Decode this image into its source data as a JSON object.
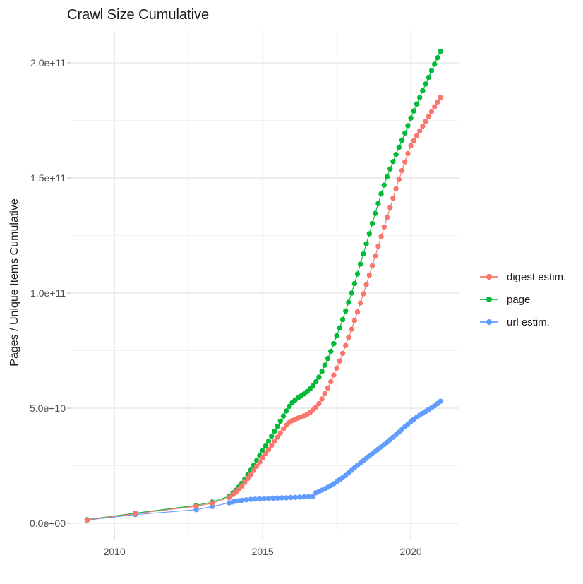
{
  "chart_data": {
    "type": "scatter",
    "title": "Crawl Size Cumulative",
    "xlabel": "",
    "ylabel": "Pages / Unique Items Cumulative",
    "grid": true,
    "legend_position": "right",
    "xlim": [
      2008.52,
      2021.64
    ],
    "ylim_billions": [
      -5.2,
      214.4
    ],
    "x_ticks": [
      {
        "value": 2010,
        "label": "2010"
      },
      {
        "value": 2015,
        "label": "2015"
      },
      {
        "value": 2020,
        "label": "2020"
      }
    ],
    "y_ticks": [
      {
        "value_billions": 0,
        "label": "0.0e+00"
      },
      {
        "value_billions": 50,
        "label": "5.0e+10"
      },
      {
        "value_billions": 100,
        "label": "1.0e+11"
      },
      {
        "value_billions": 150,
        "label": "1.5e+11"
      },
      {
        "value_billions": 200,
        "label": "2.0e+11"
      }
    ],
    "x_minor_gridlines": [
      2012.5,
      2017.5
    ],
    "y_minor_gridlines_billions": [
      25,
      75,
      125,
      175
    ],
    "value_scale_note": "point values are billions of pages/items (1e9)",
    "render_order": [
      1,
      2,
      0
    ],
    "series": [
      {
        "name": "digest estim.",
        "color": "#F8766D",
        "points": [
          [
            2009.08,
            1.5
          ],
          [
            2010.7,
            4.2
          ],
          [
            2012.76,
            7.4
          ],
          [
            2013.3,
            8.8
          ],
          [
            2013.87,
            11.2
          ],
          [
            2014.0,
            12.5
          ],
          [
            2014.1,
            13.5
          ],
          [
            2014.2,
            14.8
          ],
          [
            2014.3,
            16.2
          ],
          [
            2014.4,
            17.8
          ],
          [
            2014.5,
            19.5
          ],
          [
            2014.6,
            21.2
          ],
          [
            2014.7,
            23.0
          ],
          [
            2014.8,
            24.8
          ],
          [
            2014.9,
            26.6
          ],
          [
            2015.0,
            28.4
          ],
          [
            2015.1,
            30.2
          ],
          [
            2015.2,
            32.0
          ],
          [
            2015.3,
            33.8
          ],
          [
            2015.4,
            35.6
          ],
          [
            2015.5,
            37.4
          ],
          [
            2015.6,
            39.2
          ],
          [
            2015.7,
            41.0
          ],
          [
            2015.8,
            42.6
          ],
          [
            2015.9,
            43.8
          ],
          [
            2016.0,
            44.6
          ],
          [
            2016.1,
            45.2
          ],
          [
            2016.2,
            45.7
          ],
          [
            2016.3,
            46.2
          ],
          [
            2016.4,
            46.7
          ],
          [
            2016.5,
            47.3
          ],
          [
            2016.6,
            48.1
          ],
          [
            2016.7,
            49.2
          ],
          [
            2016.8,
            50.5
          ],
          [
            2016.9,
            52.0
          ],
          [
            2017.0,
            54.0
          ],
          [
            2017.1,
            56.3
          ],
          [
            2017.2,
            58.8
          ],
          [
            2017.3,
            61.5
          ],
          [
            2017.4,
            64.4
          ],
          [
            2017.5,
            67.4
          ],
          [
            2017.6,
            70.5
          ],
          [
            2017.7,
            73.8
          ],
          [
            2017.8,
            77.2
          ],
          [
            2017.9,
            80.7
          ],
          [
            2018.0,
            84.3
          ],
          [
            2018.1,
            88.0
          ],
          [
            2018.2,
            91.8
          ],
          [
            2018.3,
            95.7
          ],
          [
            2018.4,
            99.7
          ],
          [
            2018.5,
            103.7
          ],
          [
            2018.6,
            107.8
          ],
          [
            2018.7,
            111.9
          ],
          [
            2018.8,
            116.1
          ],
          [
            2018.9,
            120.3
          ],
          [
            2019.0,
            124.5
          ],
          [
            2019.1,
            128.7
          ],
          [
            2019.2,
            132.9
          ],
          [
            2019.3,
            137.1
          ],
          [
            2019.4,
            141.2
          ],
          [
            2019.5,
            145.3
          ],
          [
            2019.6,
            149.3
          ],
          [
            2019.7,
            153.2
          ],
          [
            2019.8,
            157.0
          ],
          [
            2019.9,
            160.6
          ],
          [
            2020.0,
            164.0
          ],
          [
            2020.1,
            166.2
          ],
          [
            2020.2,
            168.3
          ],
          [
            2020.3,
            170.4
          ],
          [
            2020.4,
            172.5
          ],
          [
            2020.5,
            174.6
          ],
          [
            2020.6,
            176.7
          ],
          [
            2020.7,
            178.8
          ],
          [
            2020.8,
            180.9
          ],
          [
            2020.9,
            183.0
          ],
          [
            2021.0,
            185.0
          ]
        ]
      },
      {
        "name": "page",
        "color": "#00BA38",
        "points": [
          [
            2009.08,
            1.6
          ],
          [
            2010.7,
            4.4
          ],
          [
            2012.76,
            7.8
          ],
          [
            2013.3,
            9.2
          ],
          [
            2013.87,
            11.8
          ],
          [
            2014.0,
            13.2
          ],
          [
            2014.1,
            14.4
          ],
          [
            2014.2,
            15.8
          ],
          [
            2014.3,
            17.4
          ],
          [
            2014.4,
            19.2
          ],
          [
            2014.5,
            21.1
          ],
          [
            2014.6,
            23.1
          ],
          [
            2014.7,
            25.2
          ],
          [
            2014.8,
            27.3
          ],
          [
            2014.9,
            29.4
          ],
          [
            2015.0,
            31.5
          ],
          [
            2015.1,
            33.6
          ],
          [
            2015.2,
            35.7
          ],
          [
            2015.3,
            37.8
          ],
          [
            2015.4,
            40.0
          ],
          [
            2015.5,
            42.2
          ],
          [
            2015.6,
            44.4
          ],
          [
            2015.7,
            46.6
          ],
          [
            2015.8,
            48.8
          ],
          [
            2015.9,
            50.8
          ],
          [
            2016.0,
            52.4
          ],
          [
            2016.1,
            53.6
          ],
          [
            2016.2,
            54.5
          ],
          [
            2016.3,
            55.3
          ],
          [
            2016.4,
            56.2
          ],
          [
            2016.5,
            57.2
          ],
          [
            2016.6,
            58.4
          ],
          [
            2016.7,
            59.8
          ],
          [
            2016.8,
            61.5
          ],
          [
            2016.9,
            63.5
          ],
          [
            2017.0,
            66.0
          ],
          [
            2017.1,
            68.7
          ],
          [
            2017.2,
            71.6
          ],
          [
            2017.3,
            74.7
          ],
          [
            2017.4,
            78.0
          ],
          [
            2017.5,
            81.4
          ],
          [
            2017.6,
            84.9
          ],
          [
            2017.7,
            88.5
          ],
          [
            2017.8,
            92.2
          ],
          [
            2017.9,
            96.0
          ],
          [
            2018.0,
            100.0
          ],
          [
            2018.1,
            104.1
          ],
          [
            2018.2,
            108.3
          ],
          [
            2018.3,
            112.6
          ],
          [
            2018.4,
            117.0
          ],
          [
            2018.5,
            121.4
          ],
          [
            2018.6,
            125.8
          ],
          [
            2018.7,
            130.2
          ],
          [
            2018.8,
            134.6
          ],
          [
            2018.9,
            138.9
          ],
          [
            2019.0,
            143.1
          ],
          [
            2019.1,
            146.9
          ],
          [
            2019.2,
            150.5
          ],
          [
            2019.3,
            153.9
          ],
          [
            2019.4,
            157.1
          ],
          [
            2019.5,
            160.2
          ],
          [
            2019.6,
            163.3
          ],
          [
            2019.7,
            166.4
          ],
          [
            2019.8,
            169.5
          ],
          [
            2019.9,
            172.7
          ],
          [
            2020.0,
            176.0
          ],
          [
            2020.1,
            179.1
          ],
          [
            2020.2,
            182.1
          ],
          [
            2020.3,
            185.0
          ],
          [
            2020.4,
            187.9
          ],
          [
            2020.5,
            190.8
          ],
          [
            2020.6,
            193.7
          ],
          [
            2020.7,
            196.6
          ],
          [
            2020.8,
            199.4
          ],
          [
            2020.9,
            202.2
          ],
          [
            2021.0,
            205.0
          ]
        ]
      },
      {
        "name": "url estim.",
        "color": "#619CFF",
        "points": [
          [
            2009.08,
            1.4
          ],
          [
            2010.7,
            3.8
          ],
          [
            2012.76,
            5.9
          ],
          [
            2013.3,
            7.3
          ],
          [
            2013.87,
            8.9
          ],
          [
            2014.0,
            9.3
          ],
          [
            2014.1,
            9.6
          ],
          [
            2014.2,
            9.8
          ],
          [
            2014.3,
            10.0
          ],
          [
            2014.45,
            10.2
          ],
          [
            2014.6,
            10.4
          ],
          [
            2014.75,
            10.5
          ],
          [
            2014.9,
            10.6
          ],
          [
            2015.05,
            10.7
          ],
          [
            2015.2,
            10.8
          ],
          [
            2015.35,
            10.9
          ],
          [
            2015.5,
            11.0
          ],
          [
            2015.65,
            11.05
          ],
          [
            2015.8,
            11.1
          ],
          [
            2015.95,
            11.2
          ],
          [
            2016.1,
            11.3
          ],
          [
            2016.25,
            11.4
          ],
          [
            2016.4,
            11.5
          ],
          [
            2016.55,
            11.6
          ],
          [
            2016.7,
            11.8
          ],
          [
            2016.8,
            13.3
          ],
          [
            2016.9,
            13.8
          ],
          [
            2017.0,
            14.4
          ],
          [
            2017.1,
            15.0
          ],
          [
            2017.2,
            15.7
          ],
          [
            2017.3,
            16.4
          ],
          [
            2017.4,
            17.2
          ],
          [
            2017.5,
            18.0
          ],
          [
            2017.6,
            18.9
          ],
          [
            2017.7,
            19.8
          ],
          [
            2017.8,
            20.8
          ],
          [
            2017.9,
            21.9
          ],
          [
            2018.0,
            23.0
          ],
          [
            2018.1,
            24.1
          ],
          [
            2018.2,
            25.2
          ],
          [
            2018.3,
            26.2
          ],
          [
            2018.4,
            27.2
          ],
          [
            2018.5,
            28.2
          ],
          [
            2018.6,
            29.2
          ],
          [
            2018.7,
            30.2
          ],
          [
            2018.8,
            31.2
          ],
          [
            2018.9,
            32.2
          ],
          [
            2019.0,
            33.2
          ],
          [
            2019.1,
            34.2
          ],
          [
            2019.2,
            35.2
          ],
          [
            2019.3,
            36.3
          ],
          [
            2019.4,
            37.4
          ],
          [
            2019.5,
            38.5
          ],
          [
            2019.6,
            39.6
          ],
          [
            2019.7,
            40.7
          ],
          [
            2019.8,
            41.9
          ],
          [
            2019.9,
            43.1
          ],
          [
            2020.0,
            44.2
          ],
          [
            2020.1,
            45.2
          ],
          [
            2020.2,
            46.1
          ],
          [
            2020.3,
            47.0
          ],
          [
            2020.4,
            47.8
          ],
          [
            2020.5,
            48.6
          ],
          [
            2020.6,
            49.4
          ],
          [
            2020.7,
            50.2
          ],
          [
            2020.8,
            51.0
          ],
          [
            2020.9,
            52.0
          ],
          [
            2021.0,
            53.0
          ]
        ]
      }
    ]
  },
  "style": {
    "background": "#ffffff",
    "grid_major_color": "#e3e3e3",
    "grid_minor_color": "#efefef",
    "axis_tick_color": "#c4c4c4",
    "tick_label_color": "#4d4d4d",
    "text_color": "#1a1a1a"
  }
}
